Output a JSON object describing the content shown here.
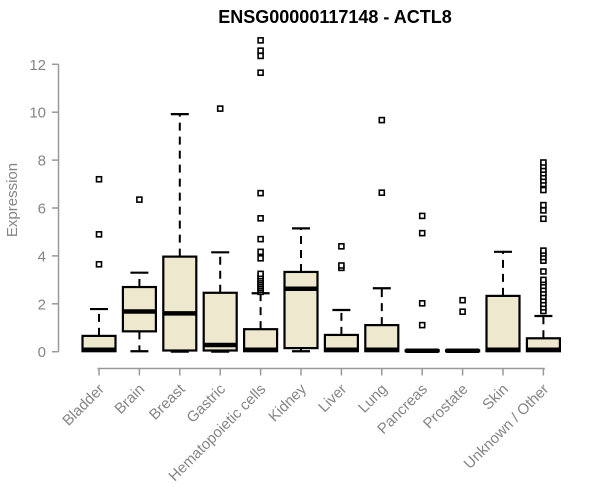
{
  "chart_data": {
    "type": "boxplot",
    "title": "ENSG00000117148 - ACTL8",
    "xlabel": "",
    "ylabel": "Expression",
    "yticks": [
      0,
      2,
      4,
      6,
      8,
      10,
      12
    ],
    "ylim": [
      0,
      13.2
    ],
    "grid": false,
    "legend": "none",
    "categories": [
      "Bladder",
      "Brain",
      "Breast",
      "Gastric",
      "Hematopoietic cells",
      "Kidney",
      "Liver",
      "Lung",
      "Pancreas",
      "Prostate",
      "Skin",
      "Unknown / Other"
    ],
    "boxes": [
      {
        "category": "Bladder",
        "whisker_low": 0,
        "q1": 0.02,
        "median": 0.08,
        "q3": 0.66,
        "whisker_high": 1.78,
        "outliers": [
          3.65,
          4.9,
          7.2
        ]
      },
      {
        "category": "Brain",
        "whisker_low": 0.02,
        "q1": 0.85,
        "median": 1.68,
        "q3": 2.7,
        "whisker_high": 3.3,
        "outliers": [
          6.35
        ]
      },
      {
        "category": "Breast",
        "whisker_low": 0,
        "q1": 0.05,
        "median": 1.6,
        "q3": 3.97,
        "whisker_high": 9.92,
        "outliers": []
      },
      {
        "category": "Gastric",
        "whisker_low": 0,
        "q1": 0.05,
        "median": 0.28,
        "q3": 2.46,
        "whisker_high": 4.15,
        "outliers": [
          10.15
        ]
      },
      {
        "category": "Hematopoietic cells",
        "whisker_low": 0,
        "q1": 0.02,
        "median": 0.08,
        "q3": 0.94,
        "whisker_high": 2.44,
        "outliers": [
          2.5,
          2.58,
          2.66,
          2.74,
          2.82,
          2.9,
          2.98,
          3.06,
          3.15,
          3.25,
          3.9,
          4.17,
          4.7,
          5.57,
          6.62,
          11.65,
          12.35,
          12.57,
          13.0
        ]
      },
      {
        "category": "Kidney",
        "whisker_low": 0.02,
        "q1": 0.15,
        "median": 2.63,
        "q3": 3.33,
        "whisker_high": 5.15,
        "outliers": []
      },
      {
        "category": "Liver",
        "whisker_low": 0,
        "q1": 0.02,
        "median": 0.08,
        "q3": 0.7,
        "whisker_high": 1.74,
        "outliers": [
          3.5,
          3.6,
          4.4
        ]
      },
      {
        "category": "Lung",
        "whisker_low": 0,
        "q1": 0.02,
        "median": 0.08,
        "q3": 1.11,
        "whisker_high": 2.65,
        "outliers": [
          6.64,
          9.67
        ]
      },
      {
        "category": "Pancreas",
        "whisker_low": 0.02,
        "q1": 0.02,
        "median": 0.04,
        "q3": 0.06,
        "whisker_high": 0.06,
        "outliers": [
          1.11,
          2.02,
          4.95,
          5.67
        ]
      },
      {
        "category": "Prostate",
        "whisker_low": 0.02,
        "q1": 0.02,
        "median": 0.04,
        "q3": 0.06,
        "whisker_high": 0.06,
        "outliers": [
          1.67,
          2.15
        ]
      },
      {
        "category": "Skin",
        "whisker_low": 0,
        "q1": 0.02,
        "median": 0.08,
        "q3": 2.33,
        "whisker_high": 4.17,
        "outliers": []
      },
      {
        "category": "Unknown / Other",
        "whisker_low": 0,
        "q1": 0.02,
        "median": 0.08,
        "q3": 0.56,
        "whisker_high": 1.49,
        "outliers": [
          1.7,
          1.85,
          2.0,
          2.15,
          2.3,
          2.45,
          2.6,
          2.75,
          2.9,
          3.0,
          3.35,
          3.8,
          3.95,
          4.1,
          4.22,
          5.55,
          5.9,
          6.12,
          6.75,
          7.0,
          7.15,
          7.3,
          7.45,
          7.6,
          7.75,
          7.9
        ]
      }
    ],
    "colors": {
      "box_fill": "#EEE8CF",
      "box_border": "#000000",
      "axis": "#999999",
      "tick_text": "#858585",
      "title_text": "#000000",
      "background": "#FFFFFF"
    }
  }
}
